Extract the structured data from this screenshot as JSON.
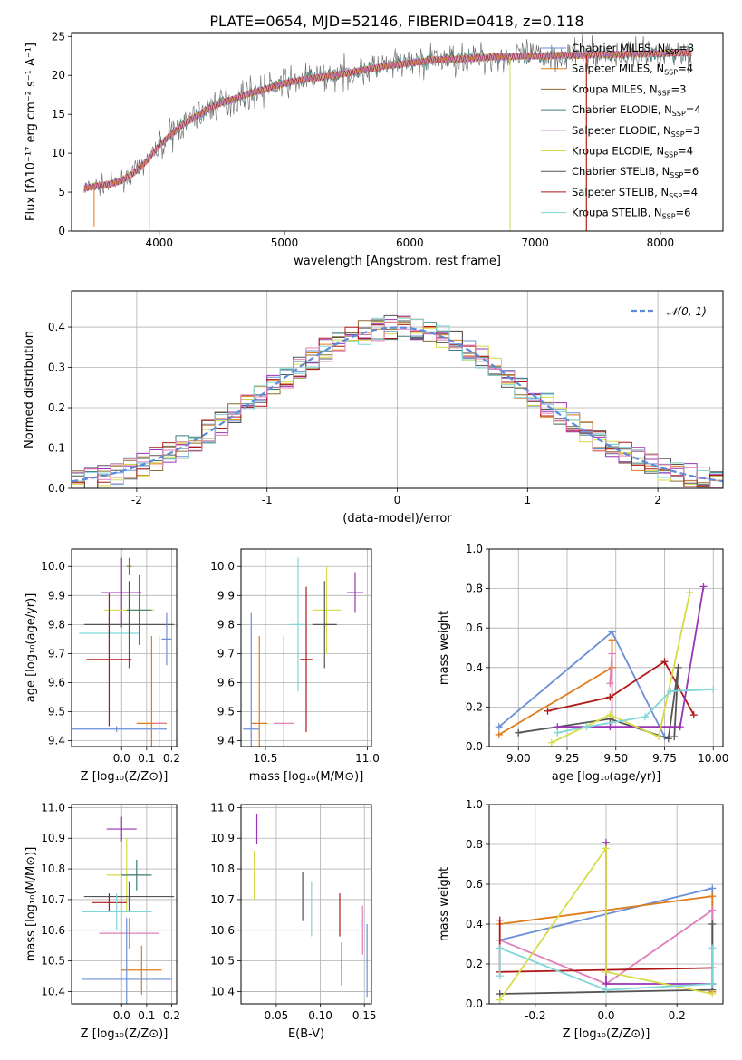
{
  "figure_title": "PLATE=0654, MJD=52146, FIBERID=0418, z=0.118",
  "series_colors": [
    "#6a8fd6",
    "#e07b1a",
    "#8a6d2f",
    "#3d7d7a",
    "#9b33b8",
    "#d6dc48",
    "#555555",
    "#b01818",
    "#7fd6d8",
    "#e07fba"
  ],
  "legend": [
    {
      "label": "Chabrier MILES, N",
      "sub": "SSP",
      "tail": "=3",
      "color": "#6a8fd6"
    },
    {
      "label": "Salpeter MILES, N",
      "sub": "SSP",
      "tail": "=4",
      "color": "#e07b1a"
    },
    {
      "label": "Kroupa MILES, N",
      "sub": "SSP",
      "tail": "=3",
      "color": "#8a6d2f"
    },
    {
      "label": "Chabrier ELODIE, N",
      "sub": "SSP",
      "tail": "=4",
      "color": "#3d7d7a"
    },
    {
      "label": "Salpeter ELODIE, N",
      "sub": "SSP",
      "tail": "=3",
      "color": "#9b33b8"
    },
    {
      "label": "Kroupa ELODIE, N",
      "sub": "SSP",
      "tail": "=4",
      "color": "#d6dc48"
    },
    {
      "label": "Chabrier STELIB, N",
      "sub": "SSP",
      "tail": "=6",
      "color": "#555555"
    },
    {
      "label": "Salpeter STELIB, N",
      "sub": "SSP",
      "tail": "=4",
      "color": "#b01818"
    },
    {
      "label": "Kroupa STELIB, N",
      "sub": "SSP",
      "tail": "=6",
      "color": "#7fd6d8"
    }
  ],
  "chart_data": [
    {
      "id": "spectrum",
      "type": "line",
      "xlabel": "wavelength [Angstrom, rest frame]",
      "ylabel": "Flux [fλ10⁻¹⁷ erg cm⁻² s⁻¹ A⁻¹]",
      "xlim": [
        3300,
        8500
      ],
      "ylim": [
        0,
        25.5
      ],
      "xticks": [
        4000,
        5000,
        6000,
        7000,
        8000
      ],
      "yticks": [
        0,
        5,
        10,
        15,
        20,
        25
      ],
      "continuum_x": [
        3400,
        3500,
        3600,
        3700,
        3800,
        3900,
        4000,
        4100,
        4200,
        4300,
        4400,
        4500,
        4600,
        4700,
        4800,
        4900,
        5000,
        5100,
        5200,
        5300,
        5400,
        5500,
        5600,
        5700,
        5800,
        5900,
        6000,
        6100,
        6200,
        6300,
        6400,
        6500,
        6600,
        6700,
        6800,
        6900,
        7000,
        7100,
        7200,
        7300,
        7400,
        7500,
        7600,
        7700,
        7800,
        7900,
        8000,
        8100,
        8200
      ],
      "continuum_y": [
        5.5,
        5.8,
        6.0,
        6.5,
        7.5,
        9.0,
        11.0,
        12.5,
        13.8,
        14.8,
        15.8,
        16.5,
        17.0,
        17.6,
        18.0,
        18.5,
        19.0,
        19.3,
        19.6,
        19.8,
        20.0,
        20.3,
        20.6,
        20.9,
        21.2,
        21.4,
        21.6,
        21.8,
        22.0,
        22.1,
        22.1,
        22.2,
        22.3,
        22.4,
        22.4,
        22.5,
        22.5,
        22.5,
        22.6,
        22.6,
        22.6,
        22.7,
        22.7,
        22.7,
        22.8,
        22.8,
        22.8,
        22.9,
        22.9
      ]
    },
    {
      "id": "residuals",
      "type": "histogram",
      "xlabel": "(data-model)/error",
      "ylabel": "Normed distribution",
      "xlim": [
        -2.5,
        2.5
      ],
      "ylim": [
        0,
        0.49
      ],
      "xticks": [
        -2,
        -1,
        0,
        1,
        2
      ],
      "yticks": [
        0.0,
        0.1,
        0.2,
        0.3,
        0.4
      ],
      "reference_label": "𝒩(0, 1)",
      "reference_color": "#5b8bd9",
      "bin_width": 0.1
    },
    {
      "id": "age_vs_Z",
      "type": "errorbar",
      "xlabel": "Z [log₁₀(Z/Z⊙)]",
      "ylabel": "age  [log₁₀(age/yr)]",
      "xlim": [
        -0.2,
        0.22
      ],
      "ylim": [
        9.38,
        10.06
      ],
      "xticks": [
        0.0,
        0.1,
        0.2
      ],
      "yticks": [
        9.4,
        9.5,
        9.6,
        9.7,
        9.8,
        9.9,
        10.0
      ],
      "points": [
        {
          "x": -0.05,
          "y": 9.77,
          "xe": 0.12,
          "ye": 0.07,
          "color": "#7fd6d8"
        },
        {
          "x": 0.03,
          "y": 10.0,
          "xe": 0.01,
          "ye": 0.03,
          "color": "#8a6d2f"
        },
        {
          "x": 0.0,
          "y": 9.91,
          "xe": 0.08,
          "ye": 0.12,
          "color": "#9b33b8"
        },
        {
          "x": 0.03,
          "y": 9.85,
          "xe": 0.1,
          "ye": 0.1,
          "color": "#d6dc48"
        },
        {
          "x": 0.07,
          "y": 9.85,
          "xe": 0.05,
          "ye": 0.12,
          "color": "#3d7d7a"
        },
        {
          "x": 0.03,
          "y": 9.8,
          "xe": 0.18,
          "ye": 0.15,
          "color": "#555555"
        },
        {
          "x": 0.18,
          "y": 9.75,
          "xe": 0.02,
          "ye": 0.09,
          "color": "#6a8fd6"
        },
        {
          "x": -0.05,
          "y": 9.68,
          "xe": 0.09,
          "ye": 0.23,
          "color": "#b01818"
        },
        {
          "x": -0.02,
          "y": 9.44,
          "xe": 0.2,
          "ye": 0.01,
          "color": "#6a8fd6"
        },
        {
          "x": 0.12,
          "y": 9.46,
          "xe": 0.06,
          "ye": 0.3,
          "color": "#e07b1a"
        },
        {
          "x": 0.15,
          "y": 9.46,
          "xe": 0.02,
          "ye": 0.3,
          "color": "#e07fba"
        }
      ]
    },
    {
      "id": "age_vs_mass",
      "type": "errorbar",
      "xlabel": "mass [log₁₀(M/M⊙)]",
      "ylabel": "",
      "xlim": [
        10.38,
        11.02
      ],
      "ylim": [
        9.38,
        10.06
      ],
      "xticks": [
        10.5,
        11.0
      ],
      "yticks": [
        9.4,
        9.5,
        9.6,
        9.7,
        9.8,
        9.9,
        10.0
      ],
      "points": [
        {
          "x": 10.94,
          "y": 9.91,
          "xe": 0.04,
          "ye": 0.07,
          "color": "#9b33b8"
        },
        {
          "x": 10.8,
          "y": 9.85,
          "xe": 0.07,
          "ye": 0.15,
          "color": "#d6dc48"
        },
        {
          "x": 10.79,
          "y": 9.8,
          "xe": 0.06,
          "ye": 0.15,
          "color": "#555555"
        },
        {
          "x": 10.66,
          "y": 9.8,
          "xe": 0.04,
          "ye": 0.23,
          "color": "#7fd6d8"
        },
        {
          "x": 10.7,
          "y": 9.68,
          "xe": 0.03,
          "ye": 0.25,
          "color": "#b01818"
        },
        {
          "x": 10.43,
          "y": 9.44,
          "xe": 0.04,
          "ye": 0.4,
          "color": "#6a8fd6"
        },
        {
          "x": 10.47,
          "y": 9.46,
          "xe": 0.04,
          "ye": 0.3,
          "color": "#e07b1a"
        },
        {
          "x": 10.59,
          "y": 9.46,
          "xe": 0.05,
          "ye": 0.3,
          "color": "#e07fba"
        }
      ]
    },
    {
      "id": "massweight_vs_age",
      "type": "line",
      "xlabel": "age  [log₁₀(age/yr)]",
      "ylabel": "mass weight",
      "xlim": [
        8.85,
        10.05
      ],
      "ylim": [
        0,
        1
      ],
      "xticks": [
        9.0,
        9.25,
        9.5,
        9.75,
        10.0
      ],
      "yticks": [
        0.0,
        0.2,
        0.4,
        0.6,
        0.8,
        1.0
      ],
      "series": [
        {
          "color": "#6a8fd6",
          "x": [
            8.9,
            9.48,
            9.75
          ],
          "y": [
            0.1,
            0.58,
            0.05
          ]
        },
        {
          "color": "#e07b1a",
          "x": [
            8.9,
            9.48,
            9.48
          ],
          "y": [
            0.06,
            0.4,
            0.54
          ]
        },
        {
          "color": "#e07fba",
          "x": [
            9.47,
            9.48,
            9.48
          ],
          "y": [
            0.32,
            0.47,
            0.1
          ]
        },
        {
          "color": "#b01818",
          "x": [
            9.15,
            9.47,
            9.75,
            9.9
          ],
          "y": [
            0.18,
            0.25,
            0.43,
            0.16
          ]
        },
        {
          "color": "#555555",
          "x": [
            9.0,
            9.47,
            9.77,
            9.82,
            9.8
          ],
          "y": [
            0.07,
            0.14,
            0.04,
            0.4,
            0.05
          ]
        },
        {
          "color": "#9b33b8",
          "x": [
            9.2,
            9.47,
            9.83,
            9.95
          ],
          "y": [
            0.1,
            0.1,
            0.1,
            0.81
          ]
        },
        {
          "color": "#d6dc48",
          "x": [
            9.17,
            9.47,
            9.72,
            9.88
          ],
          "y": [
            0.02,
            0.16,
            0.05,
            0.78
          ]
        },
        {
          "color": "#7fd6d8",
          "x": [
            9.2,
            9.35,
            9.65,
            9.78,
            10.0
          ],
          "y": [
            0.07,
            0.1,
            0.15,
            0.28,
            0.29
          ]
        }
      ]
    },
    {
      "id": "mass_vs_Z",
      "type": "errorbar",
      "xlabel": "Z [log₁₀(Z/Z⊙)]",
      "ylabel": "mass [log₁₀(M/M⊙)]",
      "xlim": [
        -0.2,
        0.22
      ],
      "ylim": [
        10.36,
        11.01
      ],
      "xticks": [
        0.0,
        0.1,
        0.2
      ],
      "yticks": [
        10.4,
        10.5,
        10.6,
        10.7,
        10.8,
        10.9,
        11.0
      ],
      "points": [
        {
          "x": 0.0,
          "y": 10.93,
          "xe": 0.06,
          "ye": 0.04,
          "color": "#9b33b8"
        },
        {
          "x": 0.02,
          "y": 10.78,
          "xe": 0.08,
          "ye": 0.12,
          "color": "#d6dc48"
        },
        {
          "x": 0.06,
          "y": 10.78,
          "xe": 0.06,
          "ye": 0.05,
          "color": "#3d7d7a"
        },
        {
          "x": 0.03,
          "y": 10.71,
          "xe": 0.18,
          "ye": 0.05,
          "color": "#555555"
        },
        {
          "x": -0.05,
          "y": 10.69,
          "xe": 0.07,
          "ye": 0.03,
          "color": "#b01818"
        },
        {
          "x": -0.02,
          "y": 10.66,
          "xe": 0.14,
          "ye": 0.06,
          "color": "#7fd6d8"
        },
        {
          "x": 0.03,
          "y": 10.59,
          "xe": 0.12,
          "ye": 0.05,
          "color": "#e07fba"
        },
        {
          "x": 0.08,
          "y": 10.47,
          "xe": 0.08,
          "ye": 0.08,
          "color": "#e07b1a"
        },
        {
          "x": 0.02,
          "y": 10.44,
          "xe": 0.18,
          "ye": 0.2,
          "color": "#6a8fd6"
        }
      ]
    },
    {
      "id": "mass_vs_EBV",
      "type": "errorbar",
      "xlabel": "E(B-V)",
      "ylabel": "",
      "xlim": [
        0.01,
        0.158
      ],
      "ylim": [
        10.36,
        11.01
      ],
      "xticks": [
        0.05,
        0.1,
        0.15
      ],
      "yticks": [
        10.4,
        10.5,
        10.6,
        10.7,
        10.8,
        10.9,
        11.0
      ],
      "points": [
        {
          "x": 0.028,
          "y": 10.93,
          "xe": 0,
          "ye": 0.05,
          "color": "#9b33b8"
        },
        {
          "x": 0.025,
          "y": 10.78,
          "xe": 0,
          "ye": 0.08,
          "color": "#d6dc48"
        },
        {
          "x": 0.08,
          "y": 10.71,
          "xe": 0,
          "ye": 0.08,
          "color": "#555555"
        },
        {
          "x": 0.09,
          "y": 10.67,
          "xe": 0,
          "ye": 0.09,
          "color": "#7fd6d8"
        },
        {
          "x": 0.122,
          "y": 10.65,
          "xe": 0,
          "ye": 0.07,
          "color": "#b01818"
        },
        {
          "x": 0.124,
          "y": 10.49,
          "xe": 0,
          "ye": 0.07,
          "color": "#e07b1a"
        },
        {
          "x": 0.148,
          "y": 10.6,
          "xe": 0,
          "ye": 0.08,
          "color": "#e07fba"
        },
        {
          "x": 0.153,
          "y": 10.5,
          "xe": 0,
          "ye": 0.12,
          "color": "#6a8fd6"
        }
      ]
    },
    {
      "id": "massweight_vs_Z",
      "type": "line",
      "xlabel": "Z [log₁₀(Z/Z⊙)]",
      "ylabel": "mass weight",
      "xlim": [
        -0.33,
        0.33
      ],
      "ylim": [
        0,
        1
      ],
      "xticks": [
        -0.2,
        0.0,
        0.2
      ],
      "yticks": [
        0.0,
        0.2,
        0.4,
        0.6,
        0.8,
        1.0
      ],
      "series": [
        {
          "color": "#6a8fd6",
          "x": [
            -0.3,
            0.3,
            0.3
          ],
          "y": [
            0.32,
            0.58,
            0.1
          ]
        },
        {
          "color": "#e07b1a",
          "x": [
            -0.3,
            0.3,
            0.3
          ],
          "y": [
            0.4,
            0.54,
            0.06
          ]
        },
        {
          "color": "#e07fba",
          "x": [
            -0.3,
            0.0,
            0.3,
            0.3
          ],
          "y": [
            0.32,
            0.1,
            0.47,
            0.1
          ]
        },
        {
          "color": "#b01818",
          "x": [
            -0.3,
            -0.3,
            0.3
          ],
          "y": [
            0.42,
            0.16,
            0.18
          ]
        },
        {
          "color": "#555555",
          "x": [
            -0.3,
            0.3,
            0.3
          ],
          "y": [
            0.05,
            0.07,
            0.4
          ]
        },
        {
          "color": "#9b33b8",
          "x": [
            0.0,
            0.0,
            0.3
          ],
          "y": [
            0.81,
            0.1,
            0.1
          ]
        },
        {
          "color": "#d6dc48",
          "x": [
            -0.3,
            0.0,
            0.0,
            0.3
          ],
          "y": [
            0.02,
            0.78,
            0.16,
            0.05
          ]
        },
        {
          "color": "#7fd6d8",
          "x": [
            -0.3,
            -0.3,
            0.0,
            0.3,
            0.3
          ],
          "y": [
            0.14,
            0.28,
            0.07,
            0.1,
            0.28
          ]
        }
      ]
    }
  ]
}
